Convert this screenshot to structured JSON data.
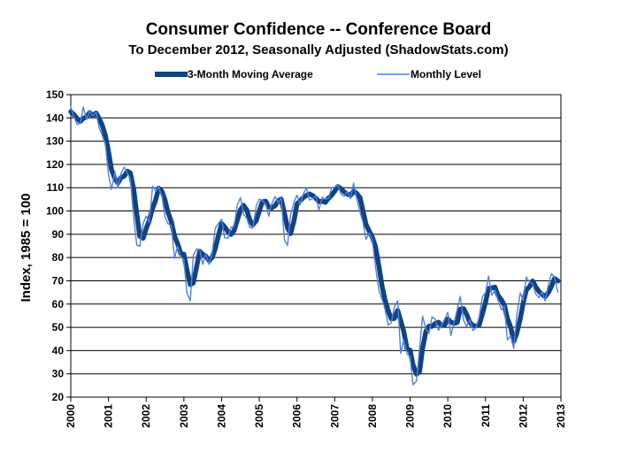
{
  "chart_data": {
    "type": "line",
    "title": "Consumer Confidence -- Conference Board",
    "subtitle": "To December 2012, Seasonally Adjusted (ShadowStats.com)",
    "xlabel": "",
    "ylabel": "Index, 1985 = 100",
    "xlim": [
      2000,
      2013
    ],
    "ylim": [
      20,
      150
    ],
    "y_ticks": [
      20,
      30,
      40,
      50,
      60,
      70,
      80,
      90,
      100,
      110,
      120,
      130,
      140,
      150
    ],
    "x_ticks": [
      2000,
      2001,
      2002,
      2003,
      2004,
      2005,
      2006,
      2007,
      2008,
      2009,
      2010,
      2011,
      2012,
      2013
    ],
    "grid": "horizontal",
    "legend_position": "top",
    "series": [
      {
        "name": "Monthly Level",
        "color": "#4f81e5",
        "x": [
          2000.0,
          2000.08,
          2000.17,
          2000.25,
          2000.33,
          2000.42,
          2000.5,
          2000.58,
          2000.67,
          2000.75,
          2000.83,
          2000.92,
          2001.0,
          2001.08,
          2001.17,
          2001.25,
          2001.33,
          2001.42,
          2001.5,
          2001.58,
          2001.67,
          2001.75,
          2001.83,
          2001.92,
          2002.0,
          2002.08,
          2002.17,
          2002.25,
          2002.33,
          2002.42,
          2002.5,
          2002.58,
          2002.67,
          2002.75,
          2002.83,
          2002.92,
          2003.0,
          2003.08,
          2003.17,
          2003.25,
          2003.33,
          2003.42,
          2003.5,
          2003.58,
          2003.67,
          2003.75,
          2003.83,
          2003.92,
          2004.0,
          2004.08,
          2004.17,
          2004.25,
          2004.33,
          2004.42,
          2004.5,
          2004.58,
          2004.67,
          2004.75,
          2004.83,
          2004.92,
          2005.0,
          2005.08,
          2005.17,
          2005.25,
          2005.33,
          2005.42,
          2005.5,
          2005.58,
          2005.67,
          2005.75,
          2005.83,
          2005.92,
          2006.0,
          2006.08,
          2006.17,
          2006.25,
          2006.33,
          2006.42,
          2006.5,
          2006.58,
          2006.67,
          2006.75,
          2006.83,
          2006.92,
          2007.0,
          2007.08,
          2007.17,
          2007.25,
          2007.33,
          2007.42,
          2007.5,
          2007.58,
          2007.67,
          2007.75,
          2007.83,
          2007.92,
          2008.0,
          2008.08,
          2008.17,
          2008.25,
          2008.33,
          2008.42,
          2008.5,
          2008.58,
          2008.67,
          2008.75,
          2008.83,
          2008.92,
          2009.0,
          2009.08,
          2009.17,
          2009.25,
          2009.33,
          2009.42,
          2009.5,
          2009.58,
          2009.67,
          2009.75,
          2009.83,
          2009.92,
          2010.0,
          2010.08,
          2010.17,
          2010.25,
          2010.33,
          2010.42,
          2010.5,
          2010.58,
          2010.67,
          2010.75,
          2010.83,
          2010.92,
          2011.0,
          2011.08,
          2011.17,
          2011.25,
          2011.33,
          2011.42,
          2011.5,
          2011.58,
          2011.67,
          2011.75,
          2011.83,
          2011.92,
          2012.0,
          2012.08,
          2012.17,
          2012.25,
          2012.33,
          2012.42,
          2012.5,
          2012.58,
          2012.67,
          2012.75,
          2012.83,
          2012.92
        ],
        "y": [
          144.7,
          140.8,
          137.1,
          137.7,
          144.7,
          139.2,
          143.0,
          140.8,
          142.5,
          135.8,
          132.6,
          128.6,
          115.7,
          109.2,
          116.9,
          109.9,
          116.1,
          118.9,
          116.3,
          114.0,
          97.0,
          85.3,
          84.9,
          94.6,
          97.8,
          95.0,
          110.7,
          108.5,
          110.3,
          106.3,
          97.4,
          94.5,
          93.7,
          79.6,
          84.9,
          80.3,
          79.0,
          64.8,
          61.4,
          81.0,
          83.6,
          83.5,
          77.0,
          81.7,
          77.0,
          81.7,
          92.5,
          94.8,
          96.4,
          88.5,
          88.3,
          93.0,
          93.1,
          102.8,
          105.7,
          98.7,
          96.7,
          92.9,
          92.6,
          102.3,
          105.1,
          104.4,
          103.0,
          97.7,
          103.1,
          106.2,
          103.6,
          105.5,
          87.5,
          85.2,
          98.3,
          103.8,
          106.8,
          102.7,
          107.5,
          109.8,
          104.7,
          105.4,
          106.5,
          100.2,
          105.9,
          105.1,
          105.3,
          110.0,
          110.2,
          111.2,
          107.2,
          106.3,
          108.5,
          105.3,
          111.9,
          105.6,
          99.5,
          95.2,
          87.8,
          90.6,
          87.3,
          76.4,
          65.9,
          62.3,
          58.1,
          51.0,
          51.9,
          58.5,
          61.4,
          38.8,
          44.7,
          38.6,
          37.4,
          25.3,
          26.9,
          40.8,
          54.8,
          49.3,
          47.4,
          54.5,
          53.4,
          48.7,
          50.6,
          53.6,
          56.5,
          46.4,
          52.3,
          57.7,
          63.3,
          52.9,
          50.4,
          53.2,
          48.6,
          49.9,
          54.3,
          63.4,
          64.8,
          72.0,
          63.8,
          66.0,
          61.7,
          57.6,
          59.2,
          44.5,
          46.4,
          40.9,
          55.2,
          64.8,
          61.5,
          71.6,
          69.5,
          68.7,
          64.4,
          62.7,
          65.4,
          61.3,
          68.4,
          73.1,
          71.5,
          65.1
        ]
      },
      {
        "name": "3-Month Moving Average",
        "color": "#12427f",
        "x": [
          2000.0,
          2000.08,
          2000.17,
          2000.25,
          2000.33,
          2000.42,
          2000.5,
          2000.58,
          2000.67,
          2000.75,
          2000.83,
          2000.92,
          2001.0,
          2001.08,
          2001.17,
          2001.25,
          2001.33,
          2001.42,
          2001.5,
          2001.58,
          2001.67,
          2001.75,
          2001.83,
          2001.92,
          2002.0,
          2002.08,
          2002.17,
          2002.25,
          2002.33,
          2002.42,
          2002.5,
          2002.58,
          2002.67,
          2002.75,
          2002.83,
          2002.92,
          2003.0,
          2003.08,
          2003.17,
          2003.25,
          2003.33,
          2003.42,
          2003.5,
          2003.58,
          2003.67,
          2003.75,
          2003.83,
          2003.92,
          2004.0,
          2004.08,
          2004.17,
          2004.25,
          2004.33,
          2004.42,
          2004.5,
          2004.58,
          2004.67,
          2004.75,
          2004.83,
          2004.92,
          2005.0,
          2005.08,
          2005.17,
          2005.25,
          2005.33,
          2005.42,
          2005.5,
          2005.58,
          2005.67,
          2005.75,
          2005.83,
          2005.92,
          2006.0,
          2006.08,
          2006.17,
          2006.25,
          2006.33,
          2006.42,
          2006.5,
          2006.58,
          2006.67,
          2006.75,
          2006.83,
          2006.92,
          2007.0,
          2007.08,
          2007.17,
          2007.25,
          2007.33,
          2007.42,
          2007.5,
          2007.58,
          2007.67,
          2007.75,
          2007.83,
          2007.92,
          2008.0,
          2008.08,
          2008.17,
          2008.25,
          2008.33,
          2008.42,
          2008.5,
          2008.58,
          2008.67,
          2008.75,
          2008.83,
          2008.92,
          2009.0,
          2009.08,
          2009.17,
          2009.25,
          2009.33,
          2009.42,
          2009.5,
          2009.58,
          2009.67,
          2009.75,
          2009.83,
          2009.92,
          2010.0,
          2010.08,
          2010.17,
          2010.25,
          2010.33,
          2010.42,
          2010.5,
          2010.58,
          2010.67,
          2010.75,
          2010.83,
          2010.92,
          2011.0,
          2011.08,
          2011.17,
          2011.25,
          2011.33,
          2011.42,
          2011.5,
          2011.58,
          2011.67,
          2011.75,
          2011.83,
          2011.92,
          2012.0,
          2012.08,
          2012.17,
          2012.25,
          2012.33,
          2012.42,
          2012.5,
          2012.58,
          2012.67,
          2012.75,
          2012.83,
          2012.92
        ],
        "y": [
          142.7,
          141.5,
          139.7,
          138.5,
          139.8,
          140.5,
          142.3,
          141.0,
          142.1,
          139.7,
          137.0,
          132.3,
          125.6,
          117.8,
          113.9,
          112.0,
          114.3,
          115.0,
          117.1,
          116.4,
          109.1,
          98.8,
          89.1,
          88.3,
          92.4,
          95.8,
          101.2,
          104.7,
          109.8,
          108.4,
          104.7,
          99.4,
          95.2,
          89.3,
          86.1,
          81.6,
          81.4,
          74.7,
          68.4,
          69.1,
          75.3,
          82.7,
          81.4,
          80.7,
          78.6,
          80.1,
          83.7,
          89.7,
          94.6,
          93.2,
          91.1,
          89.9,
          91.5,
          96.3,
          100.5,
          102.4,
          100.4,
          96.1,
          94.1,
          95.9,
          100.0,
          103.9,
          104.2,
          101.7,
          101.3,
          102.3,
          104.3,
          105.1,
          98.9,
          92.7,
          90.3,
          95.8,
          103.0,
          104.4,
          105.7,
          106.7,
          107.3,
          106.6,
          105.5,
          104.0,
          104.2,
          103.7,
          105.4,
          106.8,
          108.5,
          110.5,
          109.5,
          108.2,
          107.3,
          106.7,
          108.6,
          107.6,
          105.7,
          100.1,
          94.2,
          91.2,
          88.6,
          84.8,
          76.5,
          68.2,
          62.1,
          57.1,
          53.7,
          53.8,
          57.3,
          52.9,
          48.3,
          40.7,
          40.2,
          33.8,
          29.9,
          31.0,
          40.8,
          48.3,
          50.5,
          50.4,
          51.7,
          52.2,
          50.9,
          51.0,
          53.6,
          52.2,
          51.7,
          52.1,
          57.8,
          58.0,
          55.5,
          52.2,
          50.7,
          50.6,
          50.9,
          55.9,
          60.8,
          66.7,
          66.9,
          67.3,
          63.8,
          61.8,
          59.5,
          53.8,
          50.0,
          43.9,
          47.5,
          53.6,
          60.5,
          66.0,
          67.5,
          69.9,
          67.5,
          65.3,
          64.2,
          63.1,
          65.0,
          67.6,
          71.0,
          69.9
        ]
      }
    ]
  }
}
